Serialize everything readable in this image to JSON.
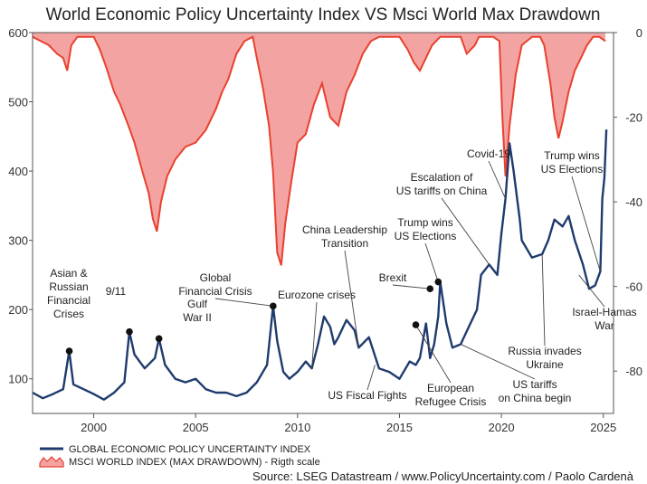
{
  "chart_data": {
    "type": "line",
    "title": "World Economic Policy Uncertainty Index VS Msci World Max Drawdown",
    "source": "Source: LSEG Datastream / www.PolicyUncertainty.com / Paolo Cardenà",
    "xlim": [
      1997,
      2025.5
    ],
    "x_ticks": [
      "2000",
      "2005",
      "2010",
      "2015",
      "2020",
      "2025"
    ],
    "y_left": {
      "lim": [
        50,
        600
      ],
      "ticks": [
        "100",
        "200",
        "300",
        "400",
        "500",
        "600"
      ]
    },
    "y_right": {
      "lim": [
        -90,
        0
      ],
      "ticks": [
        "-80",
        "-60",
        "-40",
        "-20",
        "0"
      ],
      "label": "Rigth scale"
    },
    "grid": false,
    "legend_position": "bottom-left",
    "series": [
      {
        "name": "GLOBAL ECONOMIC POLICY UNCERTAINTY INDEX",
        "axis": "left",
        "color": "#1f3b6e",
        "x": [
          1997.0,
          1997.5,
          1998.0,
          1998.5,
          1998.8,
          1999.0,
          1999.5,
          2000.0,
          2000.5,
          2001.0,
          2001.5,
          2001.75,
          2002.0,
          2002.5,
          2003.0,
          2003.2,
          2003.5,
          2004.0,
          2004.5,
          2005.0,
          2005.5,
          2006.0,
          2006.5,
          2007.0,
          2007.5,
          2008.0,
          2008.5,
          2008.8,
          2009.0,
          2009.3,
          2009.6,
          2010.0,
          2010.4,
          2010.7,
          2011.0,
          2011.3,
          2011.6,
          2011.8,
          2012.0,
          2012.4,
          2012.8,
          2013.0,
          2013.5,
          2014.0,
          2014.5,
          2015.0,
          2015.5,
          2015.8,
          2016.0,
          2016.3,
          2016.5,
          2016.7,
          2016.9,
          2017.0,
          2017.3,
          2017.6,
          2018.0,
          2018.4,
          2018.8,
          2019.0,
          2019.4,
          2019.8,
          2020.0,
          2020.2,
          2020.4,
          2020.6,
          2020.9,
          2021.0,
          2021.5,
          2022.0,
          2022.3,
          2022.6,
          2023.0,
          2023.3,
          2023.6,
          2024.0,
          2024.3,
          2024.6,
          2024.85,
          2024.95,
          2025.05,
          2025.15
        ],
        "values": [
          80,
          72,
          78,
          85,
          140,
          92,
          85,
          78,
          70,
          80,
          95,
          168,
          135,
          115,
          130,
          158,
          120,
          100,
          95,
          100,
          85,
          80,
          80,
          75,
          80,
          95,
          120,
          205,
          155,
          110,
          100,
          110,
          125,
          115,
          150,
          190,
          175,
          150,
          160,
          185,
          170,
          145,
          160,
          115,
          110,
          100,
          125,
          120,
          130,
          180,
          130,
          150,
          190,
          240,
          180,
          145,
          150,
          175,
          200,
          250,
          265,
          250,
          310,
          360,
          440,
          400,
          330,
          300,
          275,
          280,
          300,
          330,
          320,
          335,
          300,
          265,
          230,
          235,
          255,
          360,
          390,
          460
        ]
      },
      {
        "name": "MSCI WORLD INDEX (MAX DRAWDOWN)",
        "axis": "right",
        "color": "#e8412e",
        "fill": "#f4a3a3",
        "x": [
          1997.0,
          1997.4,
          1997.8,
          1998.2,
          1998.5,
          1998.7,
          1998.9,
          1999.2,
          1999.6,
          2000.0,
          2000.3,
          2000.6,
          2001.0,
          2001.3,
          2001.7,
          2002.0,
          2002.4,
          2002.7,
          2002.9,
          2003.1,
          2003.3,
          2003.6,
          2004.0,
          2004.5,
          2005.0,
          2005.5,
          2006.0,
          2006.3,
          2006.6,
          2007.0,
          2007.4,
          2007.8,
          2008.0,
          2008.3,
          2008.6,
          2008.8,
          2009.0,
          2009.2,
          2009.4,
          2009.7,
          2010.0,
          2010.4,
          2010.8,
          2011.2,
          2011.6,
          2012.0,
          2012.4,
          2012.8,
          2013.2,
          2013.6,
          2014.0,
          2014.3,
          2014.6,
          2015.0,
          2015.4,
          2015.7,
          2016.0,
          2016.3,
          2016.6,
          2017.0,
          2017.5,
          2018.0,
          2018.3,
          2018.7,
          2018.9,
          2019.2,
          2019.6,
          2019.9,
          2020.05,
          2020.2,
          2020.4,
          2020.7,
          2021.0,
          2021.5,
          2021.9,
          2022.1,
          2022.4,
          2022.6,
          2022.8,
          2023.0,
          2023.3,
          2023.6,
          2023.9,
          2024.2,
          2024.5,
          2024.8,
          2025.1
        ],
        "values": [
          -1,
          -2,
          -3,
          -5,
          -6,
          -9,
          -3,
          -1,
          -1,
          -1,
          -4,
          -8,
          -14,
          -17,
          -22,
          -26,
          -33,
          -38,
          -44,
          -47,
          -40,
          -34,
          -30,
          -27,
          -26,
          -23,
          -18,
          -14,
          -11,
          -5,
          -2,
          -1,
          -6,
          -13,
          -22,
          -33,
          -52,
          -55,
          -45,
          -35,
          -26,
          -24,
          -17,
          -12,
          -20,
          -22,
          -14,
          -10,
          -5,
          -2,
          -1,
          -1,
          -1,
          -1,
          -4,
          -7,
          -9,
          -6,
          -3,
          -1,
          -1,
          -1,
          -5,
          -3,
          -1,
          -1,
          -1,
          -2,
          -20,
          -34,
          -22,
          -10,
          -3,
          -1,
          -1,
          -3,
          -12,
          -20,
          -25,
          -21,
          -14,
          -9,
          -6,
          -3,
          -1,
          -1,
          -2
        ]
      }
    ],
    "annotations": [
      {
        "text": "Asian &\nRussian\nFinancial\nCrises",
        "x": 1998.8,
        "y": 140,
        "marker": true
      },
      {
        "text": "9/11",
        "x": 2001.75,
        "y": 168,
        "marker": true
      },
      {
        "text": "Gulf\nWar II",
        "x": 2003.2,
        "y": 158,
        "marker": true
      },
      {
        "text": "Global\nFinancial Crisis",
        "x": 2008.8,
        "y": 205,
        "marker": true
      },
      {
        "text": "Eurozone crises",
        "x": 2010.7,
        "y": 115,
        "marker": false
      },
      {
        "text": "China Leadership\nTransition",
        "x": 2013.0,
        "y": 145,
        "marker": false
      },
      {
        "text": "US Fiscal Fights",
        "x": 2013.8,
        "y": 120,
        "marker": false
      },
      {
        "text": "Brexit",
        "x": 2016.5,
        "y": 230,
        "marker": true
      },
      {
        "text": "Trump wins\nUS Elections",
        "x": 2016.9,
        "y": 240,
        "marker": true
      },
      {
        "text": "European\nRefugee Crisis",
        "x": 2015.8,
        "y": 178,
        "marker": true
      },
      {
        "text": "Escalation of\nUS tariffs on China",
        "x": 2019.4,
        "y": 265,
        "marker": false
      },
      {
        "text": "Covid-19",
        "x": 2020.2,
        "y": 360,
        "marker": false
      },
      {
        "text": "US tariffs\non China begin",
        "x": 2018.0,
        "y": 150,
        "marker": false
      },
      {
        "text": "Russia invades\nUkraine",
        "x": 2022.0,
        "y": 280,
        "marker": false
      },
      {
        "text": "Trump wins\nUS Elections",
        "x": 2024.85,
        "y": 255,
        "marker": false
      },
      {
        "text": "Israel-Hamas\nWar",
        "x": 2023.8,
        "y": 250,
        "marker": false
      }
    ]
  }
}
